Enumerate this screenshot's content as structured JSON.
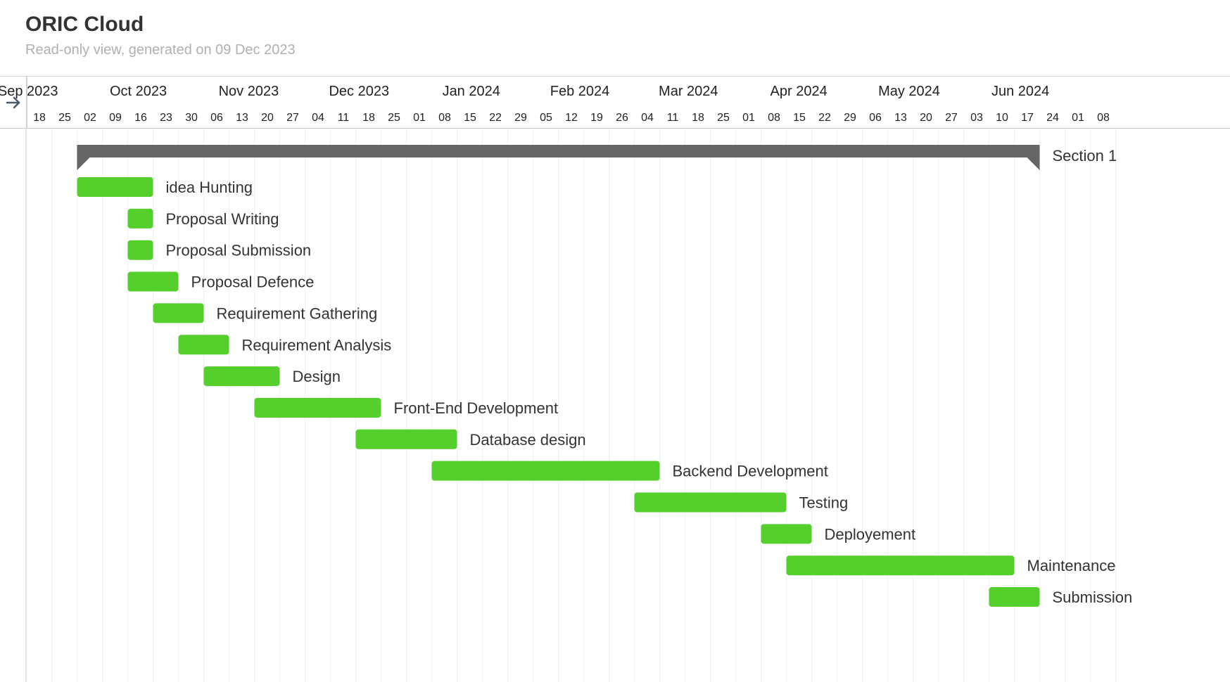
{
  "header": {
    "title": "ORIC Cloud",
    "subtitle": "Read-only view, generated on 09 Dec 2023"
  },
  "colors": {
    "task_bar": "#54cf2c",
    "section_bar": "#656565",
    "grid_line": "#f0f0f0",
    "text": "#333333",
    "subtitle": "#b0b0b0"
  },
  "icons": {
    "expand": "arrow-right-icon"
  },
  "chart_data": {
    "type": "gantt",
    "title": "ORIC Cloud",
    "months": [
      {
        "label": "Sep 2023",
        "date": "2023-09-01"
      },
      {
        "label": "Oct 2023",
        "date": "2023-10-01"
      },
      {
        "label": "Nov 2023",
        "date": "2023-11-01"
      },
      {
        "label": "Dec 2023",
        "date": "2023-12-01"
      },
      {
        "label": "Jan 2024",
        "date": "2024-01-01"
      },
      {
        "label": "Feb 2024",
        "date": "2024-02-01"
      },
      {
        "label": "Mar 2024",
        "date": "2024-03-01"
      },
      {
        "label": "Apr 2024",
        "date": "2024-04-01"
      },
      {
        "label": "May 2024",
        "date": "2024-05-01"
      },
      {
        "label": "Jun 2024",
        "date": "2024-06-01"
      }
    ],
    "week_ticks": [
      {
        "label": "18",
        "date": "2023-09-18"
      },
      {
        "label": "25",
        "date": "2023-09-25"
      },
      {
        "label": "02",
        "date": "2023-10-02"
      },
      {
        "label": "09",
        "date": "2023-10-09"
      },
      {
        "label": "16",
        "date": "2023-10-16"
      },
      {
        "label": "23",
        "date": "2023-10-23"
      },
      {
        "label": "30",
        "date": "2023-10-30"
      },
      {
        "label": "06",
        "date": "2023-11-06"
      },
      {
        "label": "13",
        "date": "2023-11-13"
      },
      {
        "label": "20",
        "date": "2023-11-20"
      },
      {
        "label": "27",
        "date": "2023-11-27"
      },
      {
        "label": "04",
        "date": "2023-12-04"
      },
      {
        "label": "11",
        "date": "2023-12-11"
      },
      {
        "label": "18",
        "date": "2023-12-18"
      },
      {
        "label": "25",
        "date": "2023-12-25"
      },
      {
        "label": "01",
        "date": "2024-01-01"
      },
      {
        "label": "08",
        "date": "2024-01-08"
      },
      {
        "label": "15",
        "date": "2024-01-15"
      },
      {
        "label": "22",
        "date": "2024-01-22"
      },
      {
        "label": "29",
        "date": "2024-01-29"
      },
      {
        "label": "05",
        "date": "2024-02-05"
      },
      {
        "label": "12",
        "date": "2024-02-12"
      },
      {
        "label": "19",
        "date": "2024-02-19"
      },
      {
        "label": "26",
        "date": "2024-02-26"
      },
      {
        "label": "04",
        "date": "2024-03-04"
      },
      {
        "label": "11",
        "date": "2024-03-11"
      },
      {
        "label": "18",
        "date": "2024-03-18"
      },
      {
        "label": "25",
        "date": "2024-03-25"
      },
      {
        "label": "01",
        "date": "2024-04-01"
      },
      {
        "label": "08",
        "date": "2024-04-08"
      },
      {
        "label": "15",
        "date": "2024-04-15"
      },
      {
        "label": "22",
        "date": "2024-04-22"
      },
      {
        "label": "29",
        "date": "2024-04-29"
      },
      {
        "label": "06",
        "date": "2024-05-06"
      },
      {
        "label": "13",
        "date": "2024-05-13"
      },
      {
        "label": "20",
        "date": "2024-05-20"
      },
      {
        "label": "27",
        "date": "2024-05-27"
      },
      {
        "label": "03",
        "date": "2024-06-03"
      },
      {
        "label": "10",
        "date": "2024-06-10"
      },
      {
        "label": "17",
        "date": "2024-06-17"
      },
      {
        "label": "24",
        "date": "2024-06-24"
      },
      {
        "label": "01",
        "date": "2024-07-01"
      },
      {
        "label": "08",
        "date": "2024-07-08"
      }
    ],
    "section": {
      "name": "Section 1",
      "start": "2023-09-25",
      "end": "2024-06-17"
    },
    "tasks": [
      {
        "name": "idea Hunting",
        "start": "2023-09-25",
        "end": "2023-10-16"
      },
      {
        "name": "Proposal Writing",
        "start": "2023-10-09",
        "end": "2023-10-16"
      },
      {
        "name": "Proposal Submission",
        "start": "2023-10-09",
        "end": "2023-10-16"
      },
      {
        "name": "Proposal Defence",
        "start": "2023-10-09",
        "end": "2023-10-23"
      },
      {
        "name": "Requirement Gathering",
        "start": "2023-10-16",
        "end": "2023-10-30"
      },
      {
        "name": "Requirement Analysis",
        "start": "2023-10-23",
        "end": "2023-11-06"
      },
      {
        "name": "Design",
        "start": "2023-10-30",
        "end": "2023-11-20"
      },
      {
        "name": "Front-End Development",
        "start": "2023-11-13",
        "end": "2023-12-18"
      },
      {
        "name": "Database design",
        "start": "2023-12-11",
        "end": "2024-01-08"
      },
      {
        "name": "Backend Development",
        "start": "2024-01-01",
        "end": "2024-03-04"
      },
      {
        "name": "Testing",
        "start": "2024-02-26",
        "end": "2024-04-08"
      },
      {
        "name": "Deployement",
        "start": "2024-04-01",
        "end": "2024-04-15"
      },
      {
        "name": "Maintenance",
        "start": "2024-04-08",
        "end": "2024-06-10"
      },
      {
        "name": "Submission",
        "start": "2024-06-03",
        "end": "2024-06-17"
      }
    ]
  }
}
